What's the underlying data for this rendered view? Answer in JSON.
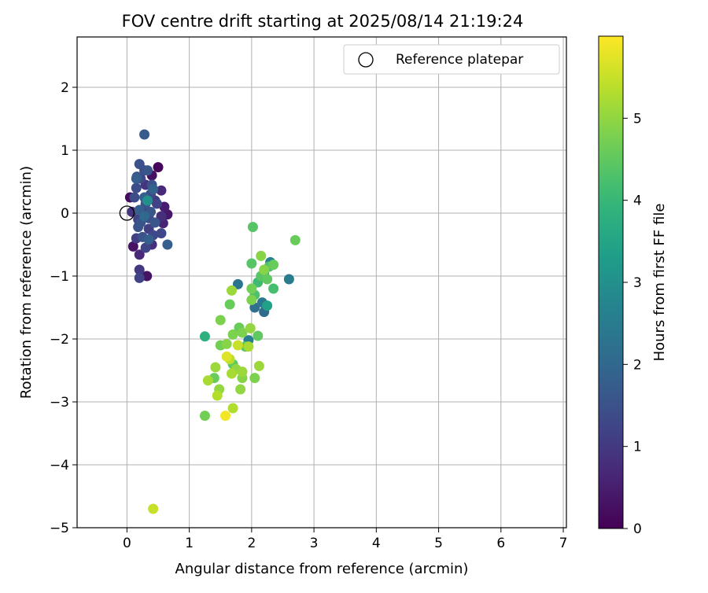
{
  "chart_data": {
    "type": "scatter",
    "title": "FOV centre drift starting at 2025/08/14 21:19:24",
    "xlabel": "Angular distance from reference (arcmin)",
    "ylabel": "Rotation from reference (arcmin)",
    "xlim": [
      -0.8,
      7.05
    ],
    "ylim": [
      -5,
      2.8
    ],
    "xticks": [
      "0",
      "1",
      "2",
      "3",
      "4",
      "5",
      "6",
      "7"
    ],
    "yticks": [
      "−5",
      "−4",
      "−3",
      "−2",
      "−1",
      "0",
      "1",
      "2"
    ],
    "grid": true,
    "legend": {
      "placement": "top-right",
      "label": "Reference platepar"
    },
    "reference_point": {
      "x": 0,
      "y": 0
    },
    "colorbar": {
      "label": "Hours from first FF file",
      "colormap": "viridis",
      "range": [
        0,
        6.0
      ],
      "ticks": [
        "0",
        "1",
        "2",
        "3",
        "4",
        "5"
      ]
    },
    "points": [
      {
        "x": 0.5,
        "y": 0.73,
        "t": 0.1
      },
      {
        "x": 0.05,
        "y": 0.25,
        "t": 0.2
      },
      {
        "x": 0.4,
        "y": 0.6,
        "t": 0.3
      },
      {
        "x": 0.32,
        "y": -1.0,
        "t": 0.3
      },
      {
        "x": 0.1,
        "y": -0.53,
        "t": 0.3
      },
      {
        "x": 0.65,
        "y": -0.02,
        "t": 0.4
      },
      {
        "x": 0.6,
        "y": 0.1,
        "t": 0.5
      },
      {
        "x": 0.58,
        "y": -0.16,
        "t": 0.6
      },
      {
        "x": 0.55,
        "y": 0.36,
        "t": 0.7
      },
      {
        "x": 0.2,
        "y": -0.66,
        "t": 0.7
      },
      {
        "x": 0.4,
        "y": -0.5,
        "t": 0.8
      },
      {
        "x": 0.55,
        "y": -0.05,
        "t": 0.8
      },
      {
        "x": 0.08,
        "y": 0.02,
        "t": 0.9
      },
      {
        "x": 0.3,
        "y": 0.45,
        "t": 0.9
      },
      {
        "x": 0.2,
        "y": -0.9,
        "t": 1.0
      },
      {
        "x": 0.45,
        "y": 0.2,
        "t": 1.0
      },
      {
        "x": 0.15,
        "y": -0.4,
        "t": 1.1
      },
      {
        "x": 0.35,
        "y": -0.25,
        "t": 1.1
      },
      {
        "x": 0.25,
        "y": 0.05,
        "t": 1.1
      },
      {
        "x": 0.2,
        "y": -1.03,
        "t": 1.2
      },
      {
        "x": 0.3,
        "y": -0.55,
        "t": 1.2
      },
      {
        "x": 0.48,
        "y": 0.15,
        "t": 1.2
      },
      {
        "x": 0.18,
        "y": -0.1,
        "t": 1.2
      },
      {
        "x": 0.42,
        "y": -0.35,
        "t": 1.3
      },
      {
        "x": 0.22,
        "y": 0.55,
        "t": 1.3
      },
      {
        "x": 0.38,
        "y": 0.3,
        "t": 1.3
      },
      {
        "x": 0.55,
        "y": -0.32,
        "t": 1.3
      },
      {
        "x": 0.28,
        "y": 0.68,
        "t": 1.4
      },
      {
        "x": 0.15,
        "y": 0.4,
        "t": 1.4
      },
      {
        "x": 0.35,
        "y": -0.08,
        "t": 1.4
      },
      {
        "x": 0.12,
        "y": 0.25,
        "t": 1.4
      },
      {
        "x": 0.25,
        "y": -0.38,
        "t": 1.5
      },
      {
        "x": 0.4,
        "y": 0.45,
        "t": 1.5
      },
      {
        "x": 0.2,
        "y": 0.78,
        "t": 1.5
      },
      {
        "x": 0.3,
        "y": 0.15,
        "t": 1.5
      },
      {
        "x": 0.18,
        "y": -0.22,
        "t": 1.5
      },
      {
        "x": 0.45,
        "y": -0.15,
        "t": 1.6
      },
      {
        "x": 0.16,
        "y": 0.58,
        "t": 1.6
      },
      {
        "x": 0.33,
        "y": 0.68,
        "t": 1.6
      },
      {
        "x": 0.22,
        "y": -0.15,
        "t": 1.6
      },
      {
        "x": 0.38,
        "y": 0.02,
        "t": 1.6
      },
      {
        "x": 0.28,
        "y": 1.25,
        "t": 1.7
      },
      {
        "x": 0.65,
        "y": -0.5,
        "t": 1.8
      },
      {
        "x": 0.15,
        "y": 0.55,
        "t": 1.8
      },
      {
        "x": 0.28,
        "y": 0.25,
        "t": 1.8
      },
      {
        "x": 0.35,
        "y": -0.42,
        "t": 1.8
      },
      {
        "x": 0.2,
        "y": 0.05,
        "t": 1.8
      },
      {
        "x": 0.42,
        "y": 0.38,
        "t": 1.9
      },
      {
        "x": 0.28,
        "y": -0.05,
        "t": 2.0
      },
      {
        "x": 2.2,
        "y": -1.57,
        "t": 2.1
      },
      {
        "x": 2.05,
        "y": -1.5,
        "t": 2.2
      },
      {
        "x": 1.78,
        "y": -1.13,
        "t": 2.3
      },
      {
        "x": 2.17,
        "y": -1.42,
        "t": 2.4
      },
      {
        "x": 2.6,
        "y": -1.05,
        "t": 2.5
      },
      {
        "x": 1.95,
        "y": -2.02,
        "t": 2.6
      },
      {
        "x": 2.3,
        "y": -0.78,
        "t": 2.7
      },
      {
        "x": 0.33,
        "y": 0.2,
        "t": 3.0
      },
      {
        "x": 2.25,
        "y": -1.47,
        "t": 3.4
      },
      {
        "x": 1.25,
        "y": -1.96,
        "t": 3.8
      },
      {
        "x": 2.2,
        "y": -0.95,
        "t": 4.0
      },
      {
        "x": 2.1,
        "y": -1.1,
        "t": 4.1
      },
      {
        "x": 2.35,
        "y": -1.2,
        "t": 4.2
      },
      {
        "x": 2.28,
        "y": -0.85,
        "t": 4.3
      },
      {
        "x": 2.05,
        "y": -1.3,
        "t": 4.3
      },
      {
        "x": 2.0,
        "y": -0.8,
        "t": 4.4
      },
      {
        "x": 2.02,
        "y": -0.22,
        "t": 4.4
      },
      {
        "x": 2.15,
        "y": -1.0,
        "t": 4.4
      },
      {
        "x": 1.9,
        "y": -2.12,
        "t": 4.4
      },
      {
        "x": 2.25,
        "y": -1.05,
        "t": 4.5
      },
      {
        "x": 2.1,
        "y": -1.95,
        "t": 4.5
      },
      {
        "x": 1.7,
        "y": -2.4,
        "t": 4.5
      },
      {
        "x": 1.8,
        "y": -1.82,
        "t": 4.6
      },
      {
        "x": 2.35,
        "y": -0.82,
        "t": 4.6
      },
      {
        "x": 1.4,
        "y": -2.62,
        "t": 4.6
      },
      {
        "x": 1.65,
        "y": -1.45,
        "t": 4.6
      },
      {
        "x": 2.7,
        "y": -0.43,
        "t": 4.6
      },
      {
        "x": 2.0,
        "y": -1.2,
        "t": 4.7
      },
      {
        "x": 1.5,
        "y": -2.1,
        "t": 4.7
      },
      {
        "x": 1.25,
        "y": -3.22,
        "t": 4.7
      },
      {
        "x": 2.05,
        "y": -2.62,
        "t": 4.8
      },
      {
        "x": 1.5,
        "y": -1.7,
        "t": 4.8
      },
      {
        "x": 2.0,
        "y": -1.38,
        "t": 4.8
      },
      {
        "x": 1.85,
        "y": -1.9,
        "t": 4.8
      },
      {
        "x": 1.7,
        "y": -1.93,
        "t": 4.8
      },
      {
        "x": 2.15,
        "y": -0.68,
        "t": 4.9
      },
      {
        "x": 1.85,
        "y": -2.62,
        "t": 4.9
      },
      {
        "x": 1.6,
        "y": -2.08,
        "t": 4.9
      },
      {
        "x": 2.2,
        "y": -0.9,
        "t": 4.9
      },
      {
        "x": 1.98,
        "y": -1.83,
        "t": 5.0
      },
      {
        "x": 1.75,
        "y": -2.48,
        "t": 5.0
      },
      {
        "x": 1.82,
        "y": -2.8,
        "t": 5.0
      },
      {
        "x": 1.48,
        "y": -2.8,
        "t": 5.0
      },
      {
        "x": 1.68,
        "y": -1.23,
        "t": 5.1
      },
      {
        "x": 2.12,
        "y": -2.43,
        "t": 5.1
      },
      {
        "x": 1.42,
        "y": -2.45,
        "t": 5.1
      },
      {
        "x": 1.85,
        "y": -2.52,
        "t": 5.1
      },
      {
        "x": 1.3,
        "y": -2.66,
        "t": 5.2
      },
      {
        "x": 1.95,
        "y": -2.12,
        "t": 5.2
      },
      {
        "x": 1.68,
        "y": -2.55,
        "t": 5.2
      },
      {
        "x": 1.45,
        "y": -2.9,
        "t": 5.3
      },
      {
        "x": 1.7,
        "y": -3.1,
        "t": 5.3
      },
      {
        "x": 1.65,
        "y": -2.32,
        "t": 5.4
      },
      {
        "x": 1.78,
        "y": -2.1,
        "t": 5.5
      },
      {
        "x": 0.42,
        "y": -4.7,
        "t": 5.5
      },
      {
        "x": 1.6,
        "y": -2.28,
        "t": 5.7
      },
      {
        "x": 1.58,
        "y": -3.22,
        "t": 5.9
      }
    ]
  }
}
